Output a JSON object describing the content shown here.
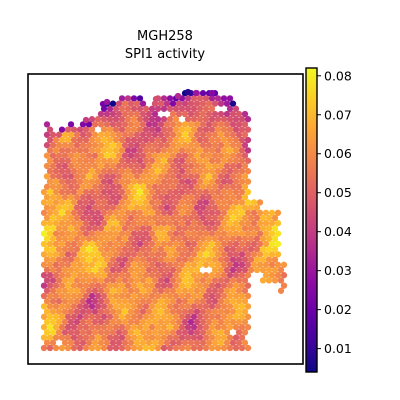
{
  "chart_data": {
    "type": "heatmap",
    "title_line1": "MGH258",
    "title_line2": "SPI1 activity",
    "xlabel": "",
    "ylabel": "",
    "colormap": "plasma",
    "color_range": [
      0.004,
      0.082
    ],
    "colorbar_ticks": [
      0.01,
      0.02,
      0.03,
      0.04,
      0.05,
      0.06,
      0.07,
      0.08
    ],
    "colorbar_tick_labels": [
      "0.01",
      "0.02",
      "0.03",
      "0.04",
      "0.05",
      "0.06",
      "0.07",
      "0.08"
    ],
    "axes_ticks_visible": false,
    "typical_value_range": [
      0.035,
      0.075
    ]
  }
}
